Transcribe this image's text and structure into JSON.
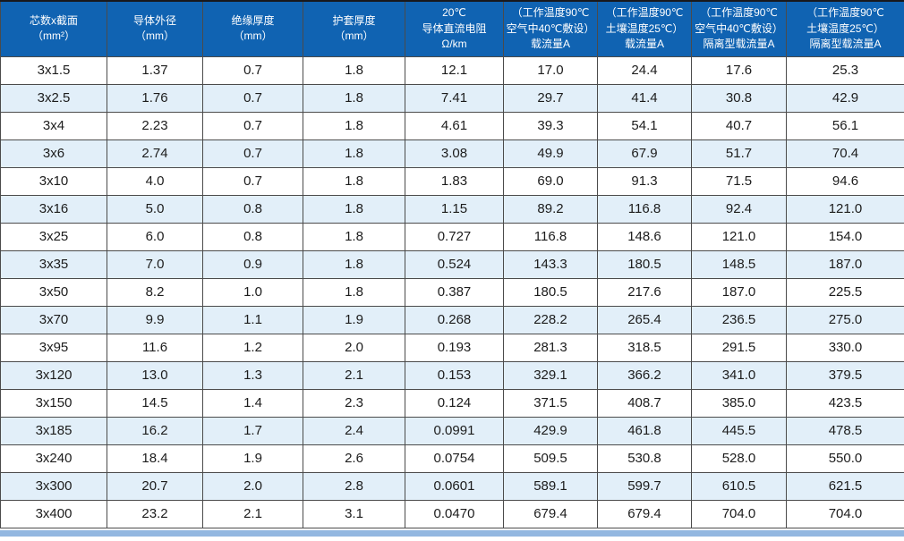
{
  "colors": {
    "header_bg": "#1063b2",
    "header_text": "#ffffff",
    "row_bg": "#ffffff",
    "row_alt_bg": "#e2eff9",
    "border": "#4b4b4b",
    "bottom_strip": "#93b7e0"
  },
  "chart_data": {
    "type": "table",
    "columns": [
      "芯数x截面\n（mm²）",
      "导体外径\n（mm）",
      "绝缘厚度\n（mm）",
      "护套厚度\n（mm）",
      "20℃\n导体直流电阻\nΩ/km",
      "（工作温度90℃\n空气中40℃敷设）\n载流量A",
      "（工作温度90℃\n土壤温度25℃）\n载流量A",
      "（工作温度90℃\n空气中40℃敷设）\n隔离型载流量A",
      "（工作温度90℃\n土壤温度25℃）\n隔离型载流量A"
    ],
    "rows": [
      [
        "3x1.5",
        "1.37",
        "0.7",
        "1.8",
        "12.1",
        "17.0",
        "24.4",
        "17.6",
        "25.3"
      ],
      [
        "3x2.5",
        "1.76",
        "0.7",
        "1.8",
        "7.41",
        "29.7",
        "41.4",
        "30.8",
        "42.9"
      ],
      [
        "3x4",
        "2.23",
        "0.7",
        "1.8",
        "4.61",
        "39.3",
        "54.1",
        "40.7",
        "56.1"
      ],
      [
        "3x6",
        "2.74",
        "0.7",
        "1.8",
        "3.08",
        "49.9",
        "67.9",
        "51.7",
        "70.4"
      ],
      [
        "3x10",
        "4.0",
        "0.7",
        "1.8",
        "1.83",
        "69.0",
        "91.3",
        "71.5",
        "94.6"
      ],
      [
        "3x16",
        "5.0",
        "0.8",
        "1.8",
        "1.15",
        "89.2",
        "116.8",
        "92.4",
        "121.0"
      ],
      [
        "3x25",
        "6.0",
        "0.8",
        "1.8",
        "0.727",
        "116.8",
        "148.6",
        "121.0",
        "154.0"
      ],
      [
        "3x35",
        "7.0",
        "0.9",
        "1.8",
        "0.524",
        "143.3",
        "180.5",
        "148.5",
        "187.0"
      ],
      [
        "3x50",
        "8.2",
        "1.0",
        "1.8",
        "0.387",
        "180.5",
        "217.6",
        "187.0",
        "225.5"
      ],
      [
        "3x70",
        "9.9",
        "1.1",
        "1.9",
        "0.268",
        "228.2",
        "265.4",
        "236.5",
        "275.0"
      ],
      [
        "3x95",
        "11.6",
        "1.2",
        "2.0",
        "0.193",
        "281.3",
        "318.5",
        "291.5",
        "330.0"
      ],
      [
        "3x120",
        "13.0",
        "1.3",
        "2.1",
        "0.153",
        "329.1",
        "366.2",
        "341.0",
        "379.5"
      ],
      [
        "3x150",
        "14.5",
        "1.4",
        "2.3",
        "0.124",
        "371.5",
        "408.7",
        "385.0",
        "423.5"
      ],
      [
        "3x185",
        "16.2",
        "1.7",
        "2.4",
        "0.0991",
        "429.9",
        "461.8",
        "445.5",
        "478.5"
      ],
      [
        "3x240",
        "18.4",
        "1.9",
        "2.6",
        "0.0754",
        "509.5",
        "530.8",
        "528.0",
        "550.0"
      ],
      [
        "3x300",
        "20.7",
        "2.0",
        "2.8",
        "0.0601",
        "589.1",
        "599.7",
        "610.5",
        "621.5"
      ],
      [
        "3x400",
        "23.2",
        "2.1",
        "3.1",
        "0.0470",
        "679.4",
        "679.4",
        "704.0",
        "704.0"
      ]
    ]
  }
}
